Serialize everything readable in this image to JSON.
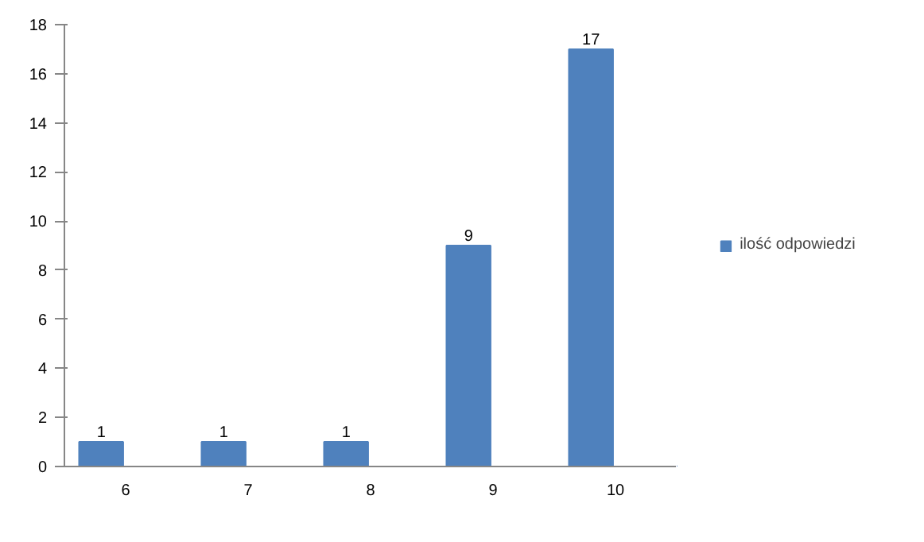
{
  "chart_data": {
    "type": "bar",
    "categories": [
      "6",
      "7",
      "8",
      "9",
      "10"
    ],
    "series": [
      {
        "name": "ilość odpowiedzi",
        "color": "#4f81bd",
        "values": [
          1,
          1,
          1,
          9,
          17
        ]
      }
    ],
    "ylim": [
      0,
      18
    ],
    "yticks": [
      0,
      2,
      4,
      6,
      8,
      10,
      12,
      14,
      16,
      18
    ],
    "grid": false,
    "legend": "right",
    "data_labels": true
  }
}
